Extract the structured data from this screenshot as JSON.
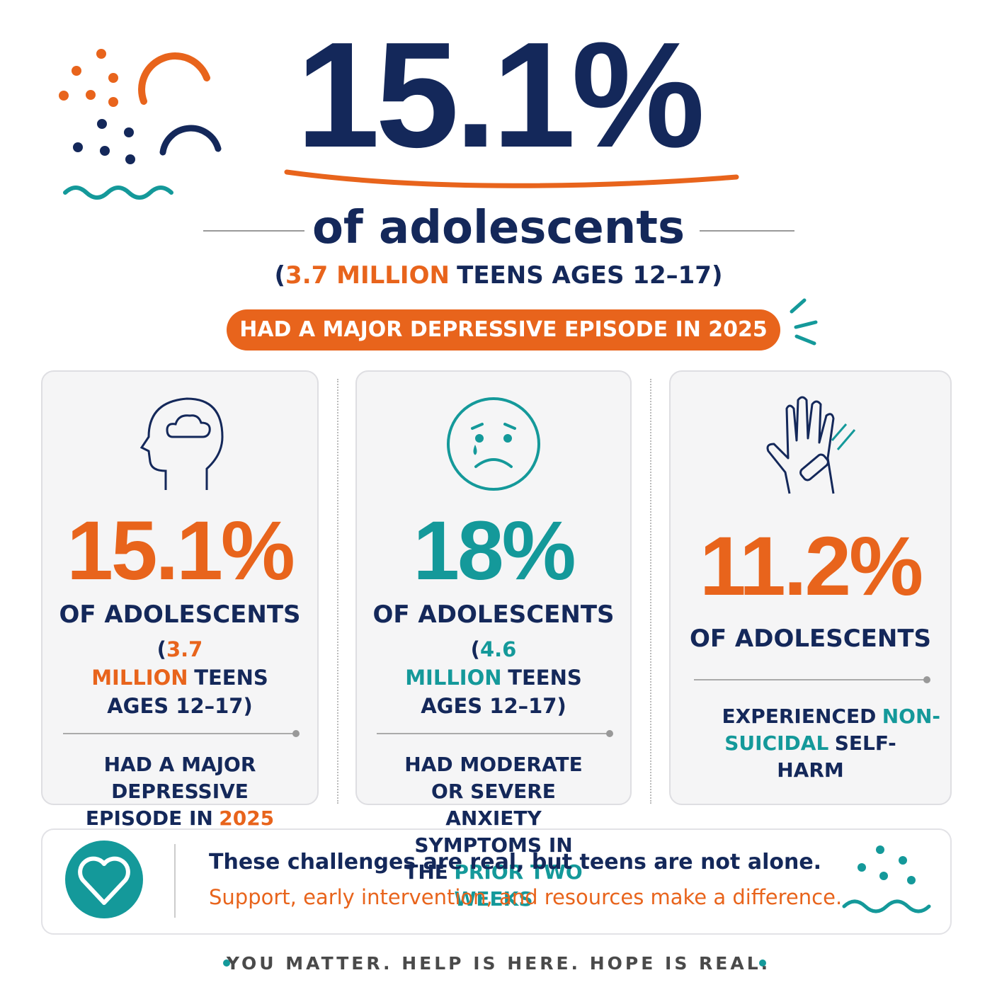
{
  "hero": {
    "stat": "15.1%",
    "subtitle": "of adolescents",
    "detail": {
      "open": "(",
      "highlight": "3.7 MILLION",
      "rest": "TEENS AGES 12–17)"
    },
    "badge": "HAD A MAJOR DEPRESSIVE EPISODE IN 2025"
  },
  "cards": [
    {
      "stat": "15.1%",
      "stat_color": "#e8641c",
      "label": "OF ADOLESCENTS",
      "detail": {
        "open": "(",
        "highlight": "3.7 MILLION",
        "rest": "TEENS AGES 12–17)"
      },
      "description": [
        {
          "text": "HAD A MAJOR DEPRESSIVE EPISODE IN"
        },
        {
          "text": "2025",
          "color": "#e8641c"
        }
      ]
    },
    {
      "stat": "18%",
      "stat_color": "#14999a",
      "label": "OF ADOLESCENTS",
      "detail": {
        "open": "(",
        "highlight": "4.6 MILLION",
        "rest": "TEENS AGES 12–17)"
      },
      "description": [
        {
          "text": "HAD MODERATE OR SEVERE ANXIETY SYMPTOMS IN THE"
        },
        {
          "text": "PRIOR TWO WEEKS",
          "color": "#14999a"
        }
      ]
    },
    {
      "stat": "11.2%",
      "stat_color": "#e8641c",
      "label": "OF ADOLESCENTS",
      "description": [
        {
          "text": "EXPERIENCED"
        },
        {
          "text": "NON-SUICIDAL",
          "color": "#14999a"
        },
        {
          "text": "SELF-HARM"
        }
      ]
    }
  ],
  "footer": {
    "line1": "These challenges are real, but teens are not alone.",
    "line2": "Support, early intervention, and resources make a difference.",
    "tagline": "YOU MATTER. HELP IS HERE. HOPE IS REAL."
  }
}
